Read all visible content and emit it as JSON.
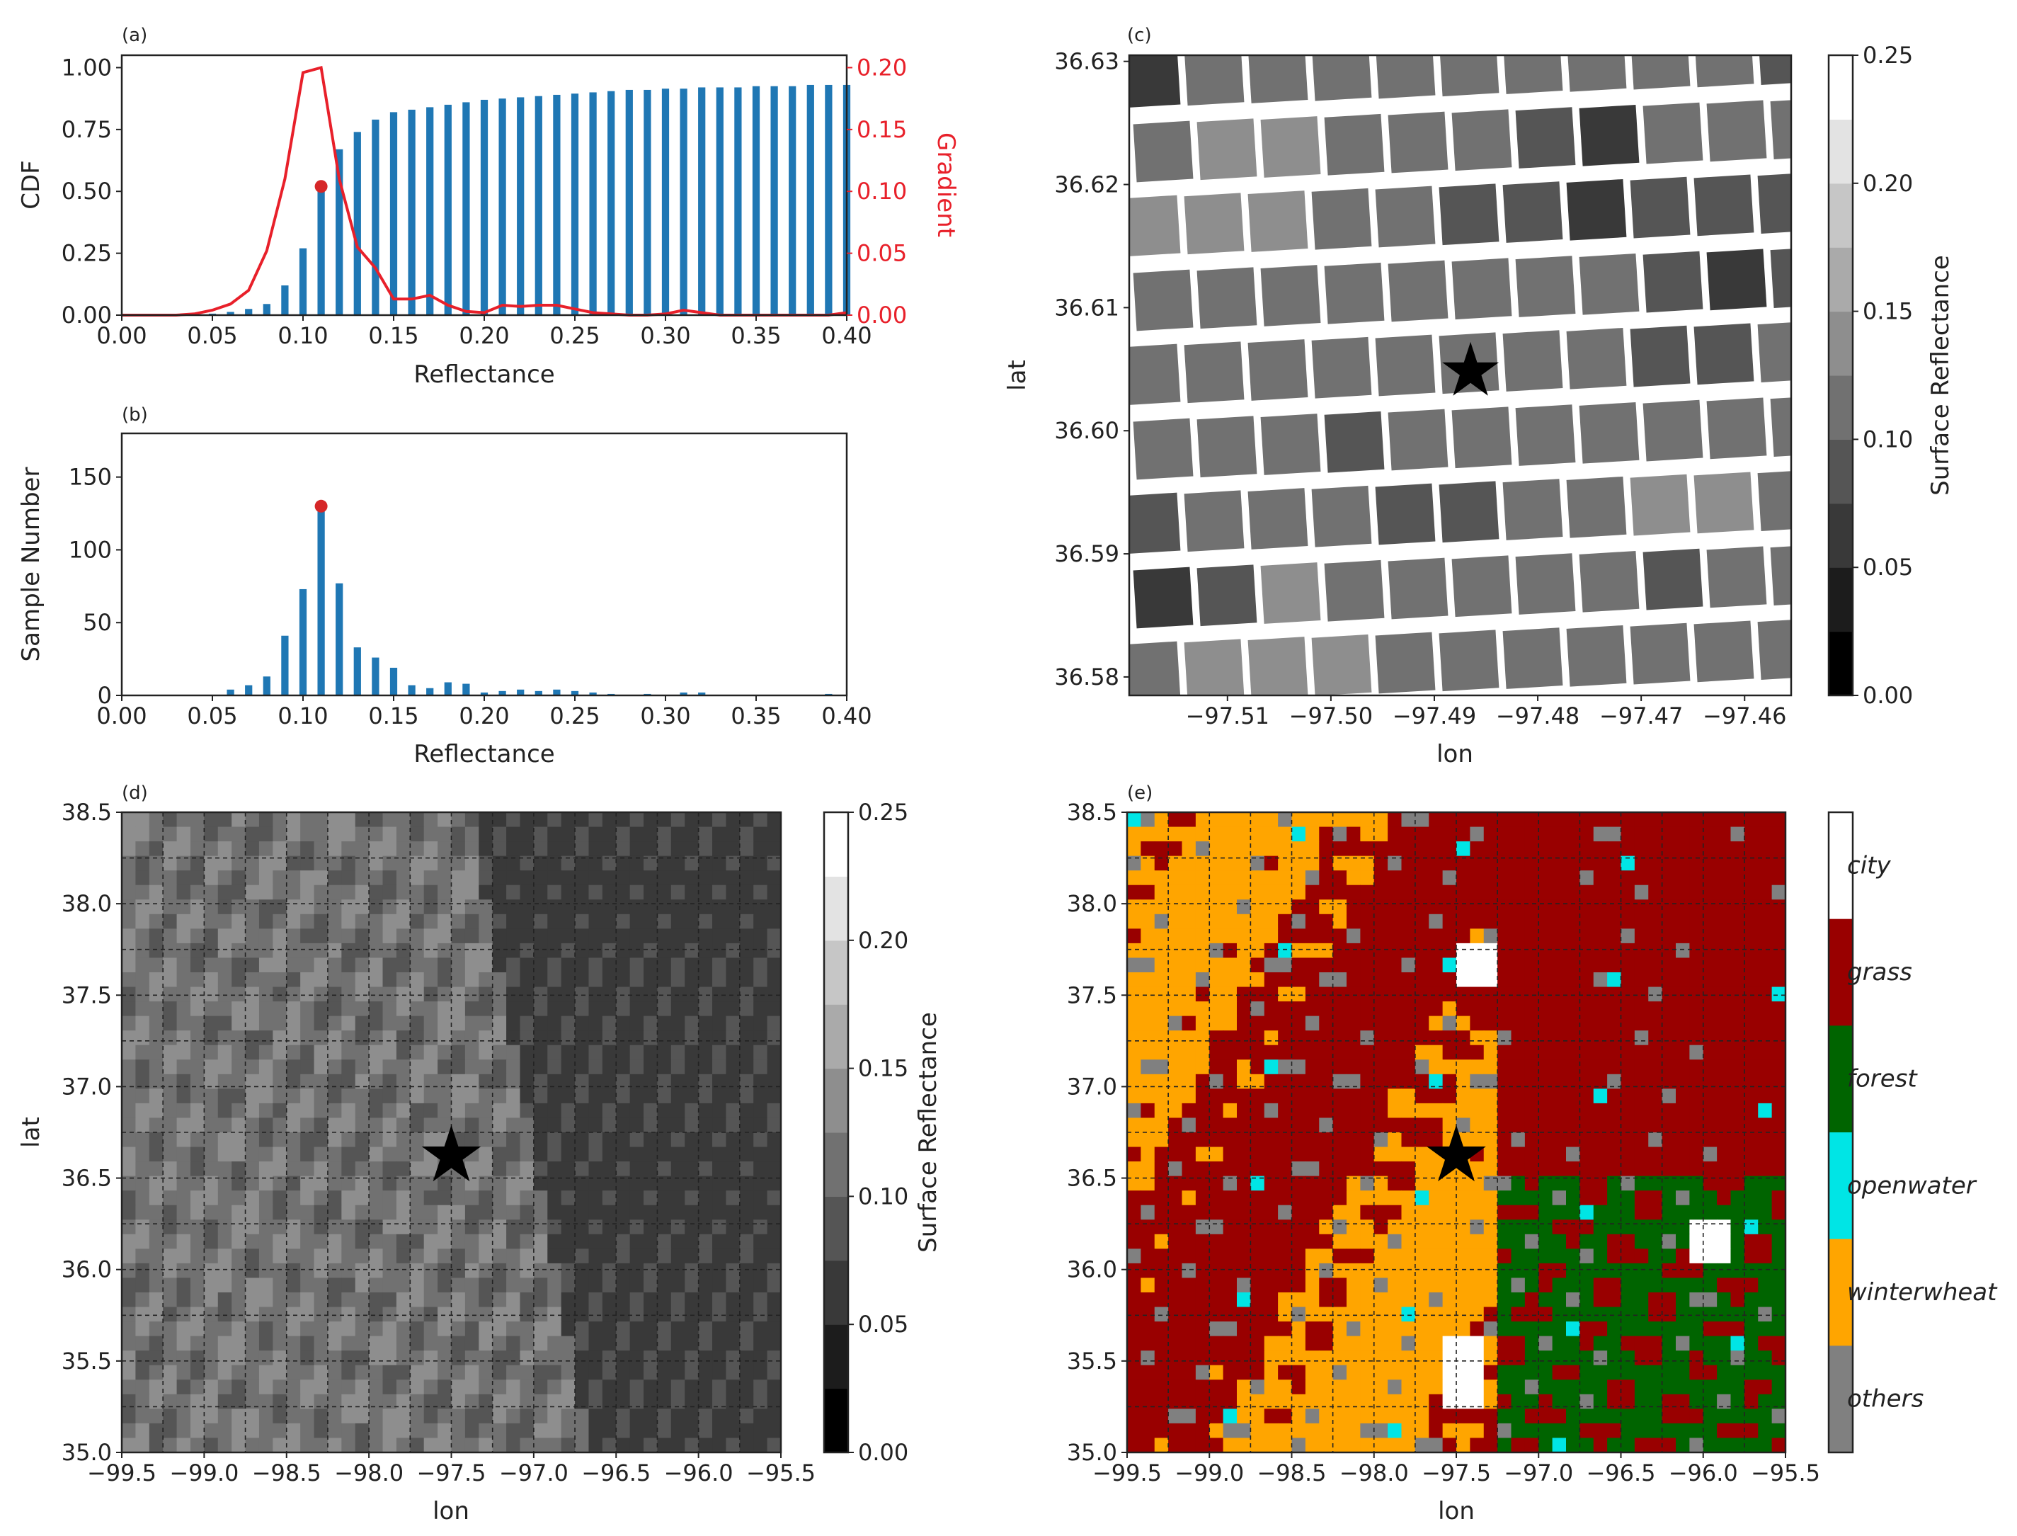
{
  "figure": {
    "colors": {
      "bar": "#1f77b4",
      "gradient": "#e8202a",
      "peak_marker": "#d62728",
      "frame": "#222222",
      "grid": "#222222"
    }
  },
  "chart_data": [
    {
      "panel": "(a)",
      "type": "bar",
      "title": "",
      "xlabel": "Reflectance",
      "ylabel": "CDF",
      "y2label": "Gradient",
      "xlim": [
        0.0,
        0.4
      ],
      "ylim": [
        0.0,
        1.05
      ],
      "y2lim": [
        0.0,
        0.21
      ],
      "xticks": [
        "0.00",
        "0.05",
        "0.10",
        "0.15",
        "0.20",
        "0.25",
        "0.30",
        "0.35",
        "0.40"
      ],
      "yticks": [
        "0.00",
        "0.25",
        "0.50",
        "0.75",
        "1.00"
      ],
      "y2ticks": [
        "0.00",
        "0.05",
        "0.10",
        "0.15",
        "0.20"
      ],
      "bar_width": 0.004,
      "series": [
        {
          "name": "CDF",
          "x": [
            0.04,
            0.05,
            0.06,
            0.07,
            0.08,
            0.09,
            0.1,
            0.11,
            0.12,
            0.13,
            0.14,
            0.15,
            0.16,
            0.17,
            0.18,
            0.19,
            0.2,
            0.21,
            0.22,
            0.23,
            0.24,
            0.25,
            0.26,
            0.27,
            0.28,
            0.29,
            0.3,
            0.31,
            0.32,
            0.33,
            0.34,
            0.35,
            0.36,
            0.37,
            0.38,
            0.39,
            0.4
          ],
          "values": [
            0.003,
            0.006,
            0.013,
            0.025,
            0.045,
            0.12,
            0.27,
            0.52,
            0.67,
            0.74,
            0.79,
            0.82,
            0.83,
            0.84,
            0.85,
            0.86,
            0.87,
            0.875,
            0.88,
            0.885,
            0.89,
            0.895,
            0.9,
            0.905,
            0.91,
            0.91,
            0.915,
            0.915,
            0.92,
            0.92,
            0.92,
            0.925,
            0.925,
            0.925,
            0.93,
            0.93,
            0.93
          ]
        },
        {
          "name": "Gradient",
          "axis": "right",
          "x": [
            0.0,
            0.03,
            0.04,
            0.05,
            0.06,
            0.07,
            0.08,
            0.09,
            0.1,
            0.11,
            0.12,
            0.13,
            0.14,
            0.15,
            0.16,
            0.17,
            0.18,
            0.19,
            0.2,
            0.21,
            0.22,
            0.23,
            0.24,
            0.25,
            0.26,
            0.27,
            0.28,
            0.29,
            0.3,
            0.31,
            0.32,
            0.33,
            0.34,
            0.35,
            0.36,
            0.37,
            0.38,
            0.39,
            0.4
          ],
          "values": [
            0.0,
            0.0,
            0.001,
            0.004,
            0.009,
            0.02,
            0.052,
            0.11,
            0.196,
            0.2,
            0.11,
            0.055,
            0.038,
            0.013,
            0.013,
            0.016,
            0.008,
            0.003,
            0.002,
            0.008,
            0.007,
            0.008,
            0.008,
            0.005,
            0.002,
            0.001,
            0.0,
            0.0,
            0.001,
            0.004,
            0.002,
            0.0,
            0.0,
            0.0,
            0.0,
            0.0,
            0.0,
            0.0,
            0.002
          ]
        }
      ],
      "peak_point": {
        "x": 0.11,
        "y": 0.52
      }
    },
    {
      "panel": "(b)",
      "type": "bar",
      "title": "",
      "xlabel": "Reflectance",
      "ylabel": "Sample Number",
      "xlim": [
        0.0,
        0.4
      ],
      "ylim": [
        0,
        180
      ],
      "xticks": [
        "0.00",
        "0.05",
        "0.10",
        "0.15",
        "0.20",
        "0.25",
        "0.30",
        "0.35",
        "0.40"
      ],
      "yticks": [
        "0",
        "50",
        "100",
        "150"
      ],
      "bar_width": 0.004,
      "series": [
        {
          "name": "Sample Number",
          "x": [
            0.06,
            0.07,
            0.08,
            0.09,
            0.1,
            0.11,
            0.12,
            0.13,
            0.14,
            0.15,
            0.16,
            0.17,
            0.18,
            0.19,
            0.2,
            0.21,
            0.22,
            0.23,
            0.24,
            0.25,
            0.26,
            0.27,
            0.29,
            0.31,
            0.32,
            0.39
          ],
          "values": [
            4,
            7,
            13,
            41,
            73,
            130,
            77,
            33,
            26,
            19,
            7,
            5,
            9,
            8,
            2,
            3,
            4,
            3,
            4,
            3,
            2,
            1,
            1,
            2,
            2,
            1
          ]
        }
      ],
      "peak_point": {
        "x": 0.11,
        "y": 130
      }
    },
    {
      "panel": "(c)",
      "type": "heatmap",
      "title": "",
      "xlabel": "lon",
      "ylabel": "lat",
      "xlim": [
        -97.5195,
        -97.4555
      ],
      "ylim": [
        36.5785,
        36.6305
      ],
      "xticks": [
        "−97.51",
        "−97.50",
        "−97.49",
        "−97.48",
        "−97.47",
        "−97.46"
      ],
      "yticks": [
        "36.58",
        "36.59",
        "36.60",
        "36.61",
        "36.62",
        "36.63"
      ],
      "colorbar": {
        "label": "Surface Reflectance",
        "range": [
          0.0,
          0.25
        ],
        "ticks": [
          "0.00",
          "0.05",
          "0.10",
          "0.15",
          "0.20",
          "0.25"
        ],
        "levels": 10
      },
      "marker": {
        "type": "star",
        "lon": -97.4865,
        "lat": 36.6048
      },
      "reflectance_rows": [
        [
          0.07,
          0.12,
          0.12,
          0.12,
          0.12,
          0.12,
          0.12,
          0.1,
          0.1,
          0.12,
          0.08,
          0.1,
          0.1
        ],
        [
          0.1,
          0.15,
          0.15,
          0.12,
          0.11,
          0.1,
          0.08,
          0.07,
          0.1,
          0.11,
          0.11,
          0.1,
          0.08
        ],
        [
          0.14,
          0.14,
          0.15,
          0.1,
          0.11,
          0.09,
          0.08,
          0.07,
          0.08,
          0.08,
          0.09,
          0.1,
          0.11
        ],
        [
          0.11,
          0.11,
          0.11,
          0.1,
          0.11,
          0.1,
          0.12,
          0.11,
          0.08,
          0.07,
          0.09,
          0.1,
          0.11
        ],
        [
          0.1,
          0.11,
          0.11,
          0.1,
          0.12,
          0.11,
          0.12,
          0.12,
          0.08,
          0.08,
          0.1,
          0.1,
          0.11
        ],
        [
          0.1,
          0.1,
          0.1,
          0.08,
          0.1,
          0.11,
          0.12,
          0.12,
          0.11,
          0.1,
          0.11,
          0.11,
          0.1
        ],
        [
          0.09,
          0.11,
          0.1,
          0.11,
          0.09,
          0.08,
          0.1,
          0.1,
          0.13,
          0.13,
          0.11,
          0.11,
          0.12
        ],
        [
          0.07,
          0.08,
          0.14,
          0.1,
          0.11,
          0.1,
          0.1,
          0.1,
          0.09,
          0.1,
          0.1,
          0.1,
          0.09
        ],
        [
          0.12,
          0.14,
          0.13,
          0.14,
          0.12,
          0.12,
          0.12,
          0.12,
          0.12,
          0.12,
          0.12,
          0.12,
          0.12
        ]
      ]
    },
    {
      "panel": "(d)",
      "type": "heatmap",
      "title": "",
      "xlabel": "lon",
      "ylabel": "lat",
      "xlim": [
        -99.5,
        -95.5
      ],
      "ylim": [
        35.0,
        38.5
      ],
      "xticks": [
        "−99.5",
        "−99.0",
        "−98.5",
        "−98.0",
        "−97.5",
        "−97.0",
        "−96.5",
        "−96.0",
        "−95.5"
      ],
      "yticks": [
        "35.0",
        "35.5",
        "36.0",
        "36.5",
        "37.0",
        "37.5",
        "38.0",
        "38.5"
      ],
      "colorbar": {
        "label": "Surface Reflectance",
        "range": [
          0.0,
          0.25
        ],
        "ticks": [
          "0.00",
          "0.05",
          "0.10",
          "0.15",
          "0.20",
          "0.25"
        ],
        "levels": 10
      },
      "marker": {
        "type": "star",
        "lon": -97.5,
        "lat": 36.62
      },
      "grid_lines": "dashed",
      "grid_counts": {
        "lon_cells": 16,
        "lat_cells": 14
      }
    },
    {
      "panel": "(e)",
      "type": "heatmap",
      "title": "",
      "xlabel": "lon",
      "ylabel": "lat",
      "xlim": [
        -99.5,
        -95.5
      ],
      "ylim": [
        35.0,
        38.5
      ],
      "xticks": [
        "−99.5",
        "−99.0",
        "−98.5",
        "−98.0",
        "−97.5",
        "−97.0",
        "−96.5",
        "−96.0",
        "−95.5"
      ],
      "yticks": [
        "35.0",
        "35.5",
        "36.0",
        "36.5",
        "37.0",
        "37.5",
        "38.0",
        "38.5"
      ],
      "marker": {
        "type": "star",
        "lon": -97.5,
        "lat": 36.62
      },
      "grid_lines": "dashed",
      "grid_counts": {
        "lon_cells": 16,
        "lat_cells": 14
      },
      "categories": [
        {
          "name": "city",
          "color": "#ffffff"
        },
        {
          "name": "grass",
          "color": "#990000"
        },
        {
          "name": "forest",
          "color": "#006400"
        },
        {
          "name": "openwater",
          "color": "#00e5e5"
        },
        {
          "name": "winterwheat",
          "color": "#ffa500"
        },
        {
          "name": "others",
          "color": "#808080"
        }
      ]
    }
  ]
}
